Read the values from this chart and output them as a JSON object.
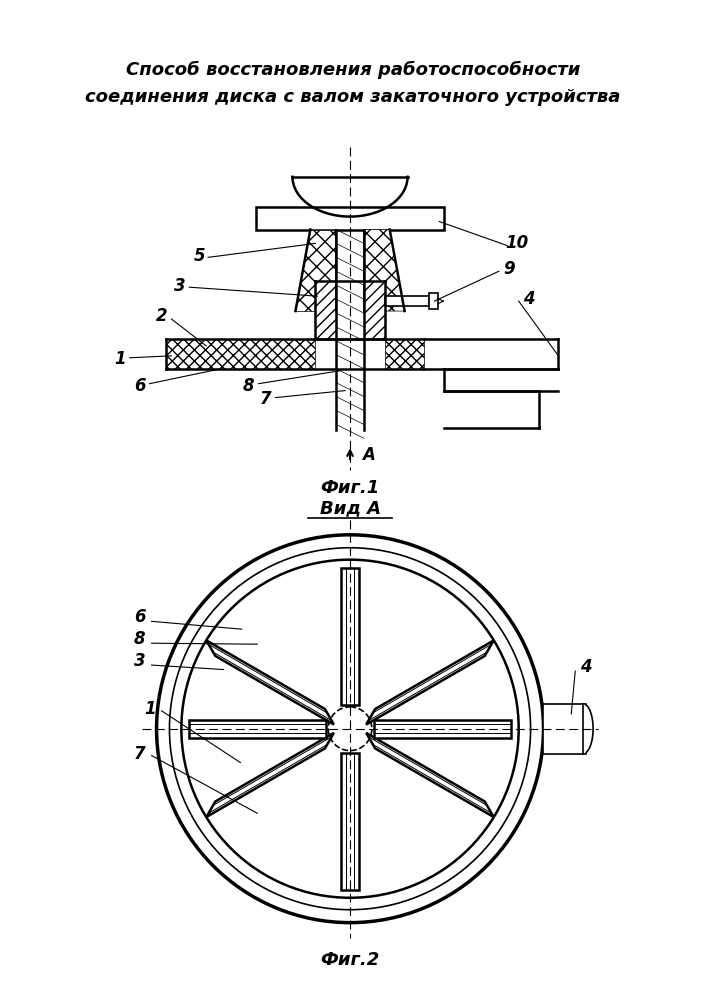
{
  "title_line1": "Способ восстановления работоспособности",
  "title_line2": "соединения диска с валом закаточного устройства",
  "fig1_label": "Фиг.1",
  "fig2_label": "Фиг.2",
  "vida_label": "Вид А",
  "background_color": "#ffffff",
  "line_color": "#000000"
}
